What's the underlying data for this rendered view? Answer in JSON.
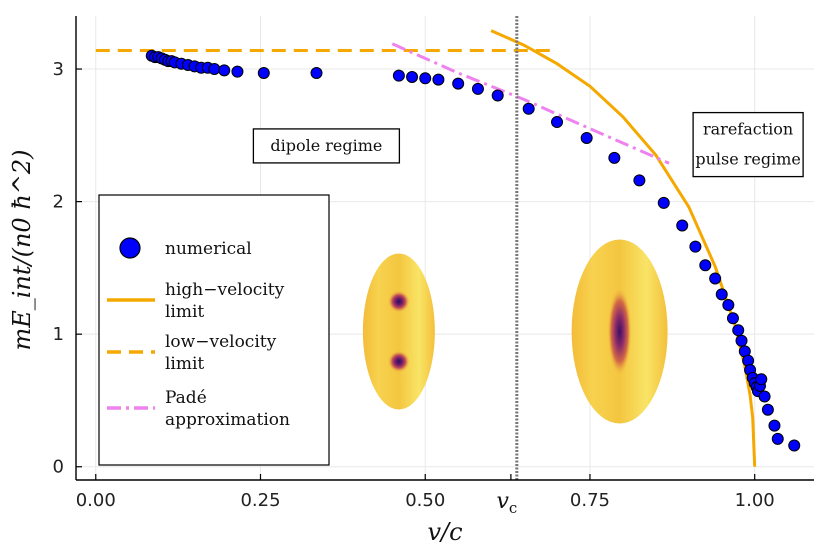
{
  "chart_data": {
    "type": "scatter",
    "title": "",
    "xlabel": "v/c",
    "ylabel": "mE_int/(n0 ħ^2)",
    "xlim": [
      -0.03,
      1.09
    ],
    "ylim": [
      -0.1,
      3.4
    ],
    "x_ticks": [
      {
        "value": 0.0,
        "label": "0.00"
      },
      {
        "value": 0.25,
        "label": "0.25"
      },
      {
        "value": 0.5,
        "label": "0.50"
      },
      {
        "value": 0.63,
        "label": "v",
        "sub": "c"
      },
      {
        "value": 0.75,
        "label": "0.75"
      },
      {
        "value": 1.0,
        "label": "1.00"
      }
    ],
    "y_ticks": [
      {
        "value": 0,
        "label": "0"
      },
      {
        "value": 1,
        "label": "1"
      },
      {
        "value": 2,
        "label": "2"
      },
      {
        "value": 3,
        "label": "3"
      }
    ],
    "grid": true,
    "critical_velocity": 0.639,
    "series": [
      {
        "name": "numerical",
        "kind": "scatter",
        "color": "#0000ff",
        "points": [
          [
            0.085,
            3.1
          ],
          [
            0.09,
            3.09
          ],
          [
            0.095,
            3.09
          ],
          [
            0.1,
            3.08
          ],
          [
            0.105,
            3.07
          ],
          [
            0.11,
            3.06
          ],
          [
            0.115,
            3.06
          ],
          [
            0.12,
            3.05
          ],
          [
            0.13,
            3.04
          ],
          [
            0.14,
            3.03
          ],
          [
            0.15,
            3.02
          ],
          [
            0.16,
            3.01
          ],
          [
            0.17,
            3.01
          ],
          [
            0.18,
            3.0
          ],
          [
            0.195,
            2.99
          ],
          [
            0.215,
            2.98
          ],
          [
            0.255,
            2.97
          ],
          [
            0.335,
            2.97
          ],
          [
            0.46,
            2.95
          ],
          [
            0.48,
            2.94
          ],
          [
            0.5,
            2.93
          ],
          [
            0.52,
            2.92
          ],
          [
            0.55,
            2.89
          ],
          [
            0.58,
            2.85
          ],
          [
            0.61,
            2.8
          ],
          [
            0.657,
            2.7
          ],
          [
            0.7,
            2.6
          ],
          [
            0.745,
            2.48
          ],
          [
            0.787,
            2.33
          ],
          [
            0.825,
            2.16
          ],
          [
            0.862,
            1.99
          ],
          [
            0.89,
            1.82
          ],
          [
            0.91,
            1.66
          ],
          [
            0.925,
            1.52
          ],
          [
            0.94,
            1.42
          ],
          [
            0.95,
            1.3
          ],
          [
            0.96,
            1.22
          ],
          [
            0.967,
            1.12
          ],
          [
            0.975,
            1.03
          ],
          [
            0.98,
            0.95
          ],
          [
            0.985,
            0.87
          ],
          [
            0.99,
            0.8
          ],
          [
            0.993,
            0.73
          ],
          [
            0.997,
            0.67
          ],
          [
            1.0,
            0.63
          ],
          [
            1.003,
            0.6
          ],
          [
            1.005,
            0.57
          ],
          [
            1.008,
            0.61
          ],
          [
            1.01,
            0.66
          ],
          [
            1.015,
            0.53
          ],
          [
            1.02,
            0.43
          ],
          [
            1.03,
            0.31
          ],
          [
            1.035,
            0.21
          ],
          [
            1.06,
            0.16
          ]
        ]
      },
      {
        "name": "high−velocity limit",
        "kind": "line",
        "color": "#f5a800",
        "dash": "none",
        "points": [
          [
            0.6,
            3.29
          ],
          [
            0.65,
            3.18
          ],
          [
            0.7,
            3.04
          ],
          [
            0.75,
            2.87
          ],
          [
            0.8,
            2.64
          ],
          [
            0.85,
            2.35
          ],
          [
            0.9,
            1.96
          ],
          [
            0.94,
            1.51
          ],
          [
            0.97,
            1.07
          ],
          [
            0.985,
            0.76
          ],
          [
            0.993,
            0.54
          ],
          [
            0.997,
            0.37
          ],
          [
            1.0,
            0.0
          ]
        ]
      },
      {
        "name": "low−velocity limit",
        "kind": "line",
        "color": "#f5a800",
        "dash": "14,8",
        "points": [
          [
            0.0,
            3.14
          ],
          [
            0.7,
            3.14
          ]
        ]
      },
      {
        "name": "Padé approximation",
        "kind": "line",
        "color": "#ee82ee",
        "dash": "14,5,3,5",
        "points": [
          [
            0.45,
            3.19
          ],
          [
            0.55,
            2.97
          ],
          [
            0.65,
            2.77
          ],
          [
            0.75,
            2.55
          ],
          [
            0.87,
            2.29
          ]
        ]
      }
    ],
    "legend": {
      "placement": "left-middle",
      "entries": [
        {
          "label_lines": [
            "numerical"
          ]
        },
        {
          "label_lines": [
            "high−velocity",
            "limit"
          ]
        },
        {
          "label_lines": [
            "low−velocity",
            "limit"
          ]
        },
        {
          "label_lines": [
            "Padé",
            "approximation"
          ]
        }
      ]
    },
    "annotations": [
      {
        "lines": [
          "dipole regime"
        ],
        "x": 0.35,
        "y": 2.42
      },
      {
        "lines": [
          "rarefaction",
          "pulse regime"
        ],
        "x": 0.99,
        "y": 2.43
      }
    ],
    "insets": [
      {
        "name": "dipole-density-inset",
        "kind": "dipole",
        "x": 0.46,
        "y": 1.02
      },
      {
        "name": "pulse-density-inset",
        "kind": "pulse",
        "x": 0.795,
        "y": 1.02
      }
    ]
  }
}
